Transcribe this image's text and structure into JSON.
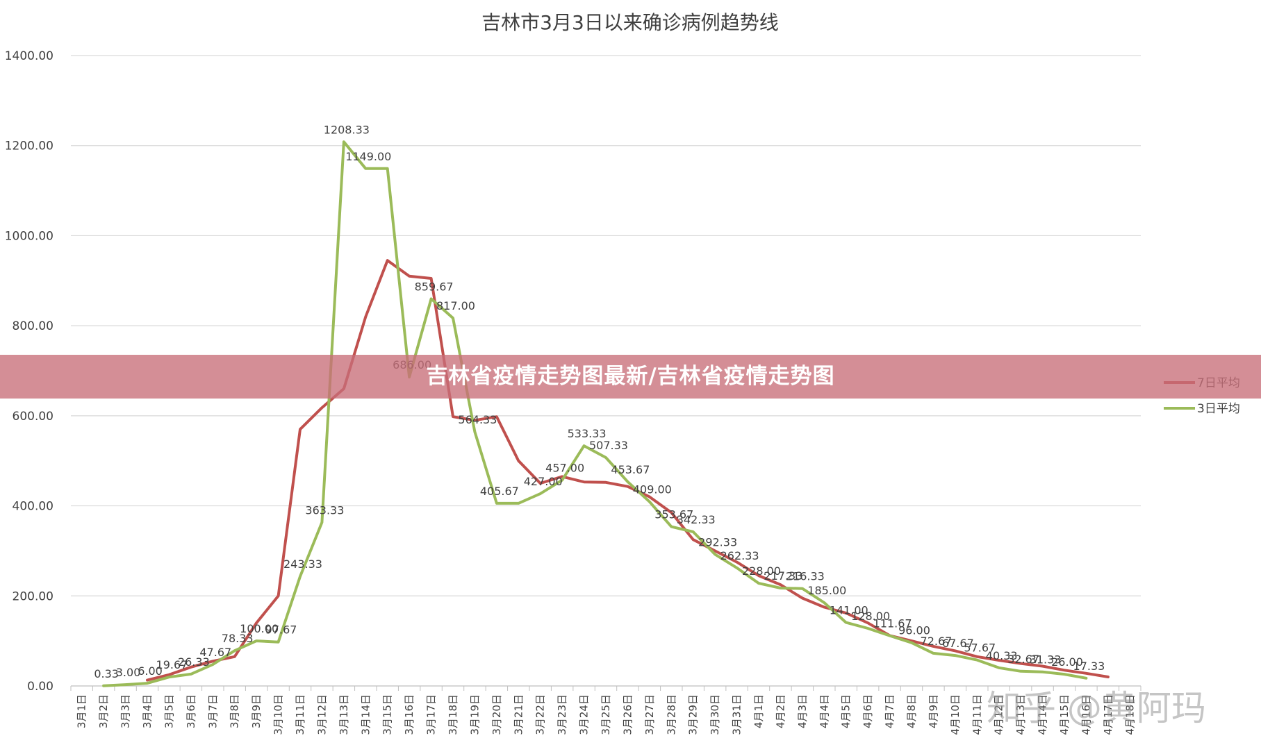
{
  "banner": {
    "text": "吉林省疫情走势图最新/吉林省疫情走势图"
  },
  "watermark": {
    "text": "知乎 @黄阿玛"
  },
  "colors": {
    "series7": "#c0504d",
    "series3": "#9bbb59",
    "grid": "#d9d9d9",
    "axis": "#bfbfbf",
    "text": "#404040"
  },
  "chart_data": {
    "type": "line",
    "title": "吉林市3月3日以来确诊病例趋势线",
    "ylim": [
      0,
      1400
    ],
    "yticks": [
      "0.00",
      "200.00",
      "400.00",
      "600.00",
      "800.00",
      "1000.00",
      "1200.00",
      "1400.00"
    ],
    "grid": true,
    "legend_position": "right",
    "categories": [
      "3月1日",
      "3月2日",
      "3月3日",
      "3月4日",
      "3月5日",
      "3月6日",
      "3月7日",
      "3月8日",
      "3月9日",
      "3月10日",
      "3月11日",
      "3月12日",
      "3月13日",
      "3月14日",
      "3月15日",
      "3月16日",
      "3月17日",
      "3月18日",
      "3月19日",
      "3月20日",
      "3月21日",
      "3月22日",
      "3月23日",
      "3月24日",
      "3月25日",
      "3月26日",
      "3月27日",
      "3月28日",
      "3月29日",
      "3月30日",
      "3月31日",
      "4月1日",
      "4月2日",
      "4月3日",
      "4月4日",
      "4月5日",
      "4月6日",
      "4月7日",
      "4月8日",
      "4月9日",
      "4月10日",
      "4月11日",
      "4月12日",
      "4月13日",
      "4月14日",
      "4月15日",
      "4月16日",
      "4月17日",
      "4月18日"
    ],
    "series": [
      {
        "name": "7日平均",
        "color": "#c0504d",
        "values": [
          null,
          null,
          null,
          13,
          25,
          42,
          55,
          65,
          140,
          200,
          570,
          618,
          660,
          820,
          945,
          910,
          905,
          598,
          590,
          598,
          500,
          450,
          465,
          453,
          452,
          443,
          420,
          385,
          325,
          300,
          275,
          245,
          225,
          195,
          175,
          162,
          140,
          112,
          100,
          88,
          78,
          65,
          57,
          50,
          44,
          35,
          28,
          20,
          null
        ]
      },
      {
        "name": "3日平均",
        "color": "#9bbb59",
        "values": [
          null,
          0.33,
          3.0,
          6.0,
          19.67,
          26.33,
          47.67,
          78.33,
          100.0,
          97.67,
          243.33,
          363.33,
          1208.33,
          1149.0,
          1149.0,
          686.0,
          859.67,
          817.0,
          564.33,
          405.67,
          405.67,
          427.0,
          457.0,
          533.33,
          507.33,
          453.67,
          409.0,
          353.67,
          342.33,
          292.33,
          262.33,
          228.0,
          217.33,
          216.33,
          185.0,
          141.0,
          128.0,
          111.67,
          96.0,
          72.67,
          67.67,
          57.67,
          40.33,
          32.67,
          31.33,
          26.0,
          17.33,
          null,
          null
        ]
      }
    ],
    "data_labels": [
      {
        "index": 1,
        "text": "0.33"
      },
      {
        "index": 2,
        "text": "3.00"
      },
      {
        "index": 3,
        "text": "6.00"
      },
      {
        "index": 4,
        "text": "19.67"
      },
      {
        "index": 5,
        "text": "26.33"
      },
      {
        "index": 6,
        "text": "47.67"
      },
      {
        "index": 7,
        "text": "78.33"
      },
      {
        "index": 8,
        "text": "100.00"
      },
      {
        "index": 9,
        "text": "97.67"
      },
      {
        "index": 10,
        "text": "243.33"
      },
      {
        "index": 11,
        "text": "363.33"
      },
      {
        "index": 12,
        "text": "1208.33"
      },
      {
        "index": 13,
        "text": "1149.00"
      },
      {
        "index": 15,
        "text": "686.00"
      },
      {
        "index": 16,
        "text": "859.67"
      },
      {
        "index": 17,
        "text": "817.00"
      },
      {
        "index": 18,
        "text": "564.33"
      },
      {
        "index": 19,
        "text": "405.67"
      },
      {
        "index": 21,
        "text": "427.00"
      },
      {
        "index": 22,
        "text": "457.00"
      },
      {
        "index": 23,
        "text": "533.33"
      },
      {
        "index": 24,
        "text": "507.33"
      },
      {
        "index": 25,
        "text": "453.67"
      },
      {
        "index": 26,
        "text": "409.00"
      },
      {
        "index": 27,
        "text": "353.67"
      },
      {
        "index": 28,
        "text": "342.33"
      },
      {
        "index": 29,
        "text": "292.33"
      },
      {
        "index": 30,
        "text": "262.33"
      },
      {
        "index": 31,
        "text": "228.00"
      },
      {
        "index": 32,
        "text": "217.33"
      },
      {
        "index": 33,
        "text": "216.33"
      },
      {
        "index": 34,
        "text": "185.00"
      },
      {
        "index": 35,
        "text": "141.00"
      },
      {
        "index": 36,
        "text": "128.00"
      },
      {
        "index": 37,
        "text": "111.67"
      },
      {
        "index": 38,
        "text": "96.00"
      },
      {
        "index": 39,
        "text": "72.67"
      },
      {
        "index": 40,
        "text": "67.67"
      },
      {
        "index": 41,
        "text": "57.67"
      },
      {
        "index": 42,
        "text": "40.33"
      },
      {
        "index": 43,
        "text": "32.67"
      },
      {
        "index": 44,
        "text": "31.33"
      },
      {
        "index": 45,
        "text": "26.00"
      },
      {
        "index": 46,
        "text": "17.33"
      }
    ]
  }
}
